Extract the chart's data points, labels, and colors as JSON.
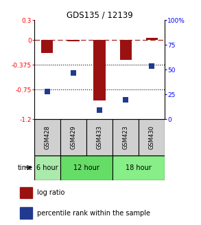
{
  "title": "GDS135 / 12139",
  "samples": [
    "GSM428",
    "GSM429",
    "GSM433",
    "GSM423",
    "GSM430"
  ],
  "log_ratio": [
    -0.2,
    -0.02,
    -0.92,
    -0.3,
    0.03
  ],
  "percentile_rank": [
    28,
    47,
    9,
    20,
    54
  ],
  "ylim_left": [
    -1.2,
    0.3
  ],
  "ylim_right": [
    0,
    100
  ],
  "yticks_left": [
    0.3,
    0,
    -0.375,
    -0.75,
    -1.2
  ],
  "ytick_left_labels": [
    "0.3",
    "0",
    "-0.375",
    "-0.75",
    "-1.2"
  ],
  "yticks_right": [
    100,
    75,
    50,
    25,
    0
  ],
  "ytick_right_labels": [
    "100%",
    "75",
    "50",
    "25",
    "0"
  ],
  "dotted_lines": [
    -0.375,
    -0.75
  ],
  "bar_color": "#9B1111",
  "dot_color": "#1F3A8F",
  "bar_width": 0.45,
  "dot_size": 40,
  "time_groups": [
    {
      "label": "6 hour",
      "start": 0,
      "end": 1,
      "color": "#AAEAAA"
    },
    {
      "label": "12 hour",
      "start": 1,
      "end": 3,
      "color": "#66DD66"
    },
    {
      "label": "18 hour",
      "start": 3,
      "end": 5,
      "color": "#88EE88"
    }
  ],
  "legend_bar_label": "log ratio",
  "legend_dot_label": "percentile rank within the sample"
}
